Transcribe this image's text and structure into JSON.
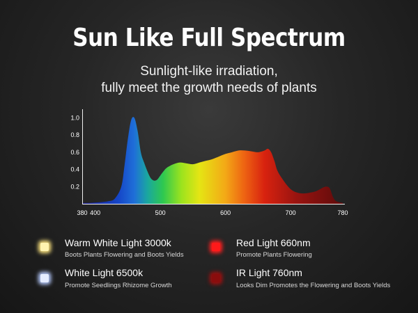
{
  "title": "Sun Like Full Spectrum",
  "subtitle_line1": "Sunlight-like irradiation,",
  "subtitle_line2": "fully meet the growth needs of plants",
  "chart_data": {
    "type": "area",
    "title": "",
    "xlabel": "",
    "ylabel": "",
    "xlim": [
      380,
      780
    ],
    "ylim": [
      0,
      1.1
    ],
    "x_ticks": [
      380,
      400,
      500,
      600,
      700,
      780
    ],
    "y_ticks": [
      0.2,
      0.4,
      0.6,
      0.8,
      1.0
    ],
    "y_tick_labels": [
      "0.2",
      "0.4",
      "0.6",
      "0.8",
      "1.0"
    ],
    "grid": false,
    "series": [
      {
        "x": [
          380,
          390,
          400,
          410,
          420,
          430,
          440,
          445,
          450,
          455,
          460,
          465,
          470,
          475,
          480,
          485,
          490,
          495,
          500,
          505,
          510,
          520,
          530,
          540,
          550,
          560,
          570,
          580,
          590,
          600,
          610,
          620,
          630,
          640,
          650,
          660,
          665,
          670,
          675,
          680,
          690,
          700,
          710,
          720,
          730,
          740,
          750,
          755,
          760,
          765,
          770,
          780
        ],
        "y": [
          0.01,
          0.01,
          0.015,
          0.02,
          0.03,
          0.06,
          0.2,
          0.45,
          0.75,
          0.97,
          1.0,
          0.85,
          0.6,
          0.48,
          0.38,
          0.3,
          0.27,
          0.28,
          0.33,
          0.38,
          0.42,
          0.46,
          0.48,
          0.47,
          0.46,
          0.48,
          0.5,
          0.52,
          0.55,
          0.58,
          0.6,
          0.62,
          0.62,
          0.61,
          0.6,
          0.62,
          0.64,
          0.6,
          0.5,
          0.38,
          0.26,
          0.17,
          0.13,
          0.12,
          0.13,
          0.15,
          0.19,
          0.2,
          0.18,
          0.08,
          0.03,
          0.01
        ]
      }
    ]
  },
  "legend": [
    {
      "label": "Warm White Light 3000k",
      "desc": "Boots Plants Flowering and Boots Yields",
      "color": "#fff3b0",
      "glow": "#ffe680"
    },
    {
      "label": "White Light 6500k",
      "desc": "Promote Seedlings Rhizome Growth",
      "color": "#e4ecff",
      "glow": "#b8ccff"
    },
    {
      "label": "Red Light 660nm",
      "desc": "Promote Plants Flowering",
      "color": "#ff1a1a",
      "glow": "#ff2020"
    },
    {
      "label": "IR Light 760nm",
      "desc": "Looks Dim Promotes the Flowering and Boots Yields",
      "color": "#8a0d0d",
      "glow": "#a01010"
    }
  ]
}
